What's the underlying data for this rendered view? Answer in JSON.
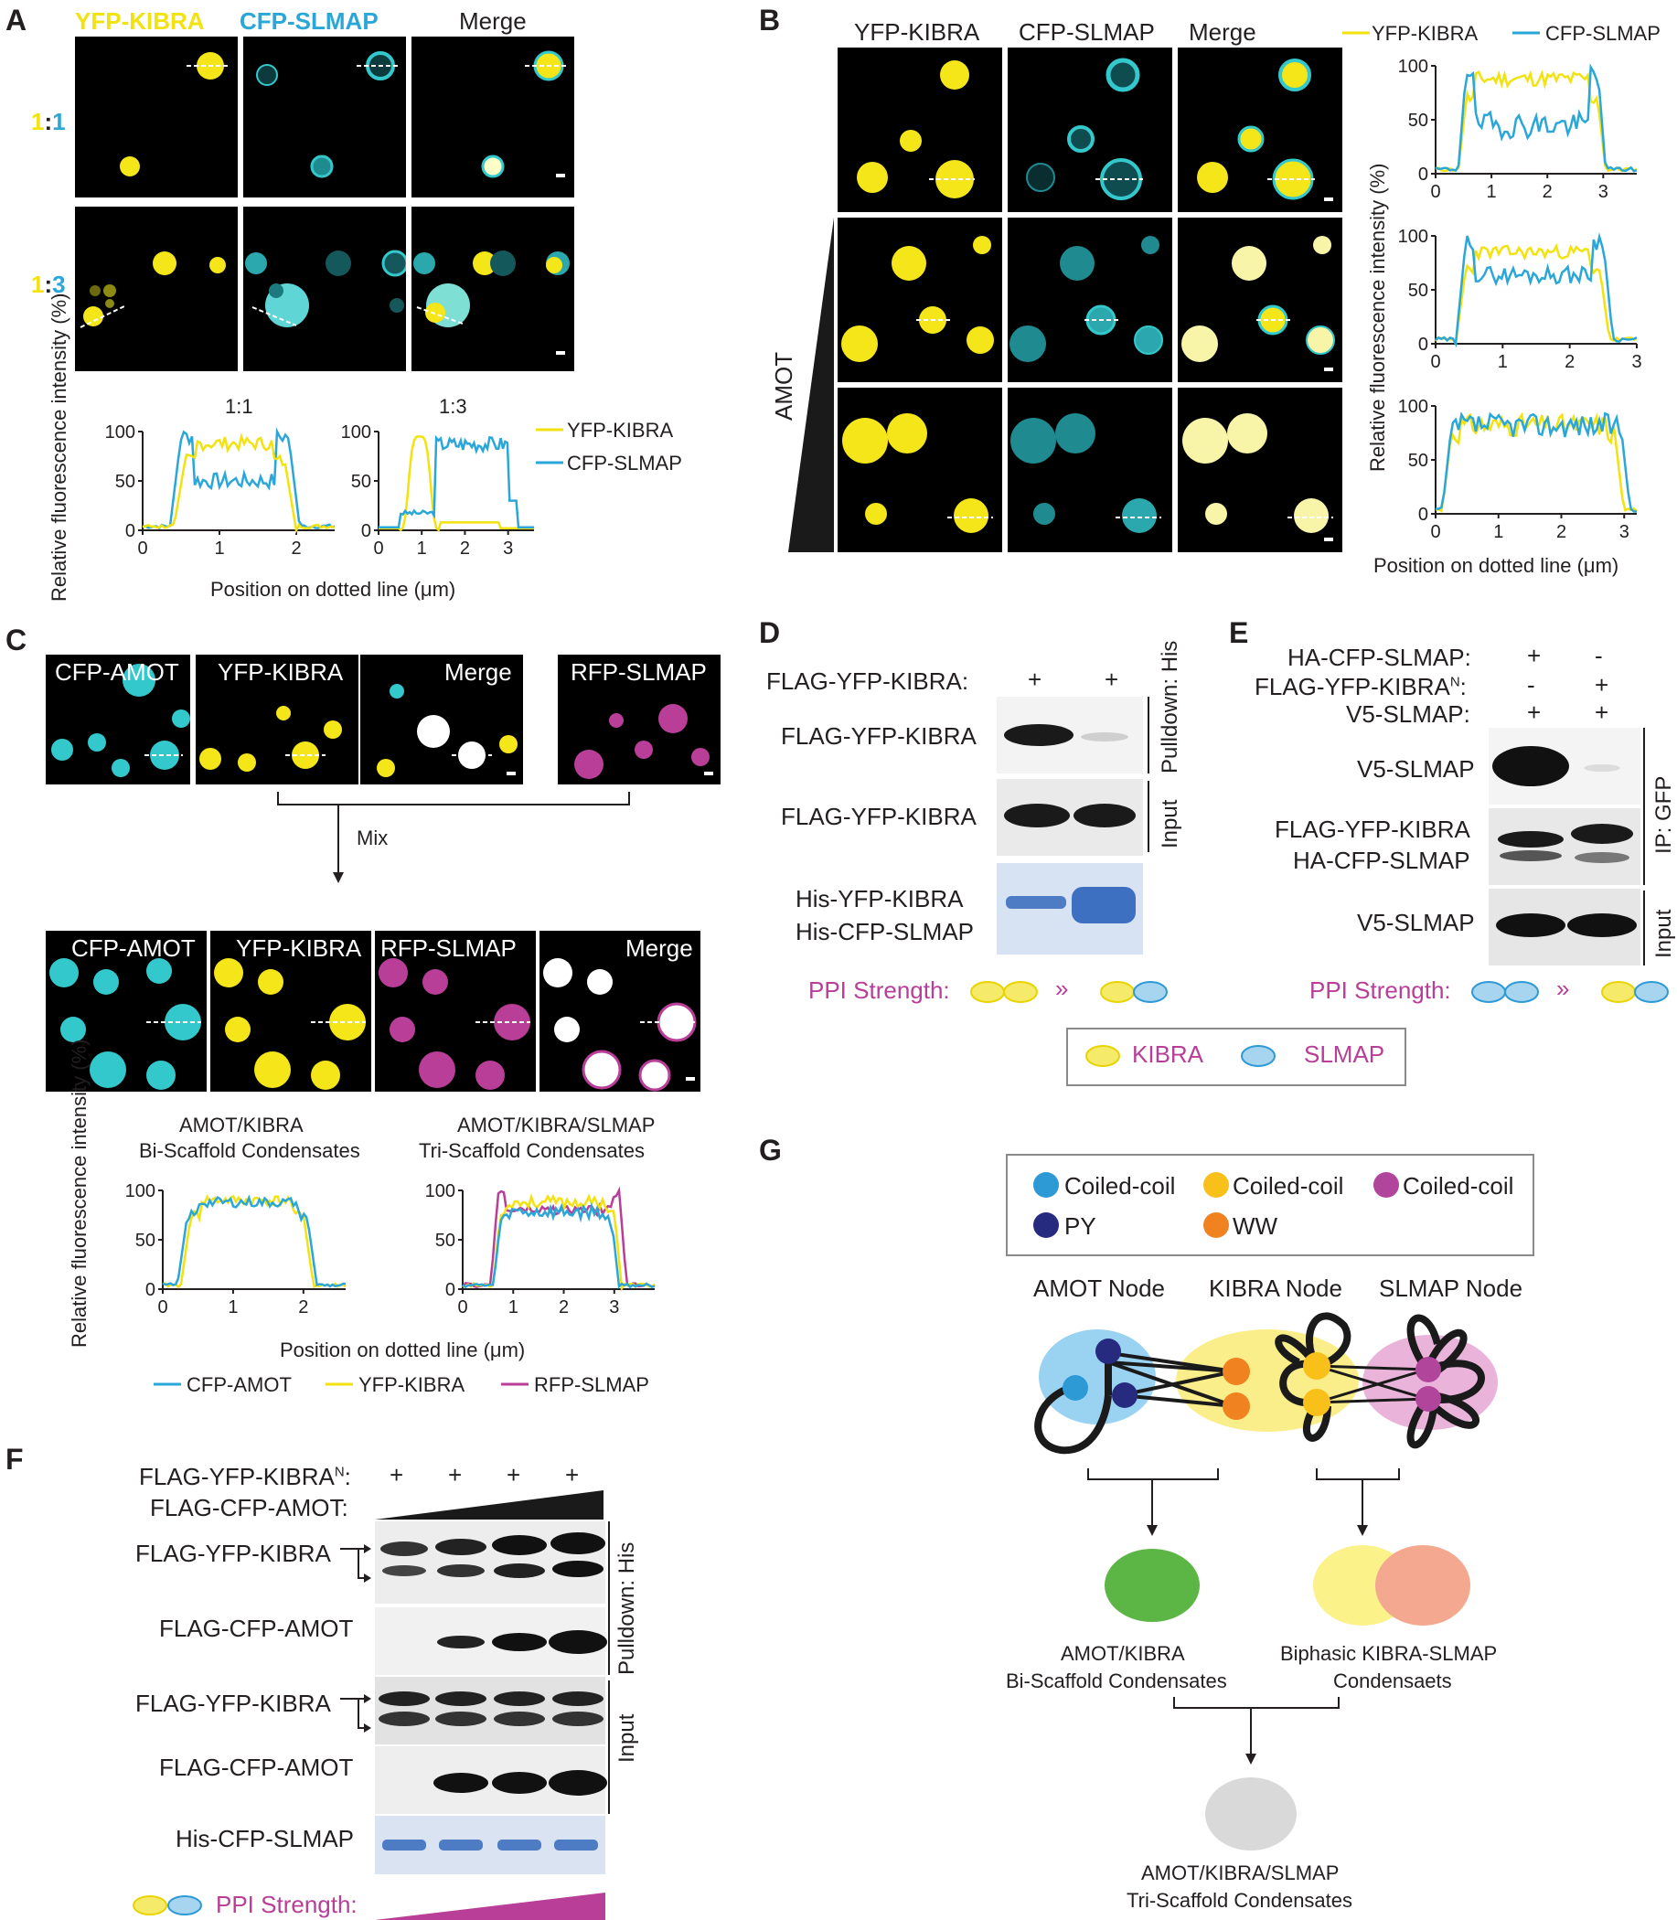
{
  "colors": {
    "yfp": "#f2e20f",
    "cfp": "#2aa7d8",
    "rfp": "#b83e98",
    "magenta_text": "#b83e98",
    "cyan_cell": "#33c8cc",
    "yellow_cell": "#f5e61a",
    "gel_blue": "#5b86c7",
    "aff_blue": "#2d9ad6",
    "dark_navy": "#262b80",
    "orange": "#f0821f",
    "gold": "#f9c01a",
    "magenta_node": "#b0459b",
    "green": "#5cb645",
    "grey": "#d9d9d9"
  },
  "panelA": {
    "label": "A",
    "headers": [
      "YFP-KIBRA",
      "CFP-SLMAP",
      "Merge"
    ],
    "row1_ratio": {
      "left": "1",
      "sep": ":",
      "right": "1"
    },
    "row2_ratio": {
      "left": "1",
      "sep": ":",
      "right": "3"
    },
    "plot1_title": "1:1",
    "plot2_title": "1:3",
    "ylabel": "Relative fluorescence intensity (%)",
    "xlabel": "Position on dotted line (μm)",
    "legend": [
      "YFP-KIBRA",
      "CFP-SLMAP"
    ]
  },
  "panelB": {
    "label": "B",
    "headers": [
      "YFP-KIBRA",
      "CFP-SLMAP",
      "Merge"
    ],
    "side_label": "AMOT",
    "legend": [
      "YFP-KIBRA",
      "CFP-SLMAP"
    ],
    "ylabel": "Relative fluorescence intensity (%)",
    "xlabel": "Position on dotted line (μm)"
  },
  "panelC": {
    "label": "C",
    "top_labels": [
      "CFP-AMOT",
      "YFP-KIBRA",
      "Merge",
      "RFP-SLMAP"
    ],
    "mix": "Mix",
    "bottom_labels": [
      "CFP-AMOT",
      "YFP-KIBRA",
      "RFP-SLMAP",
      "Merge"
    ],
    "plot1_title_1": "AMOT/KIBRA",
    "plot1_title_2": "Bi-Scaffold Condensates",
    "plot2_title_1": "AMOT/KIBRA/SLMAP",
    "plot2_title_2": "Tri-Scaffold Condensates",
    "ylabel": "Relative fluorescence intensity (%)",
    "xlabel": "Position on dotted line (μm)",
    "legend": [
      "CFP-AMOT",
      "YFP-KIBRA",
      "RFP-SLMAP"
    ]
  },
  "panelD": {
    "label": "D",
    "header": "FLAG-YFP-KIBRA:",
    "marks": [
      "+",
      "+"
    ],
    "rows": [
      "FLAG-YFP-KIBRA",
      "FLAG-YFP-KIBRA",
      "His-YFP-KIBRA",
      "His-CFP-SLMAP"
    ],
    "side1": "Pulldown: His",
    "side2": "Input",
    "ppi": "PPI Strength:",
    "gt": "»"
  },
  "panelE": {
    "label": "E",
    "headers": [
      "HA-CFP-SLMAP:",
      "FLAG-YFP-KIBRA",
      "N",
      ":",
      "V5-SLMAP:"
    ],
    "marks": [
      [
        "+",
        "-"
      ],
      [
        "-",
        "+"
      ],
      [
        "+",
        "+"
      ]
    ],
    "rows": [
      "V5-SLMAP",
      "FLAG-YFP-KIBRA",
      "HA-CFP-SLMAP",
      "V5-SLMAP"
    ],
    "side1": "IP: GFP",
    "side2": "Input",
    "ppi": "PPI Strength:",
    "gt": "»"
  },
  "legendDE": {
    "kibra": "KIBRA",
    "slmap": "SLMAP"
  },
  "panelF": {
    "label": "F",
    "header1": "FLAG-YFP-KIBRA",
    "header1_sup": "N",
    "header1_colon": ":",
    "header2": "FLAG-CFP-AMOT:",
    "marks": [
      "+",
      "+",
      "+",
      "+"
    ],
    "rows": [
      "FLAG-YFP-KIBRA",
      "FLAG-CFP-AMOT",
      "FLAG-YFP-KIBRA",
      "FLAG-CFP-AMOT",
      "His-CFP-SLMAP"
    ],
    "side1": "Pulldown: His",
    "side2": "Input",
    "ppi": "PPI Strength:"
  },
  "panelG": {
    "label": "G",
    "legend": [
      "Coiled-coil",
      "Coiled-coil",
      "Coiled-coil",
      "PY",
      "WW"
    ],
    "nodes": [
      "AMOT Node",
      "KIBRA Node",
      "SLMAP Node"
    ],
    "bi_1": "AMOT/KIBRA",
    "bi_2": "Bi-Scaffold Condensates",
    "biphasic_1": "Biphasic KIBRA-SLMAP",
    "biphasic_2": "Condensaets",
    "tri_1": "AMOT/KIBRA/SLMAP",
    "tri_2": "Tri-Scaffold Condensates"
  },
  "ticks": {
    "y": [
      "0",
      "50",
      "100"
    ],
    "x3": [
      "0",
      "1",
      "2",
      "3"
    ],
    "x2": [
      "0",
      "1",
      "2"
    ]
  }
}
